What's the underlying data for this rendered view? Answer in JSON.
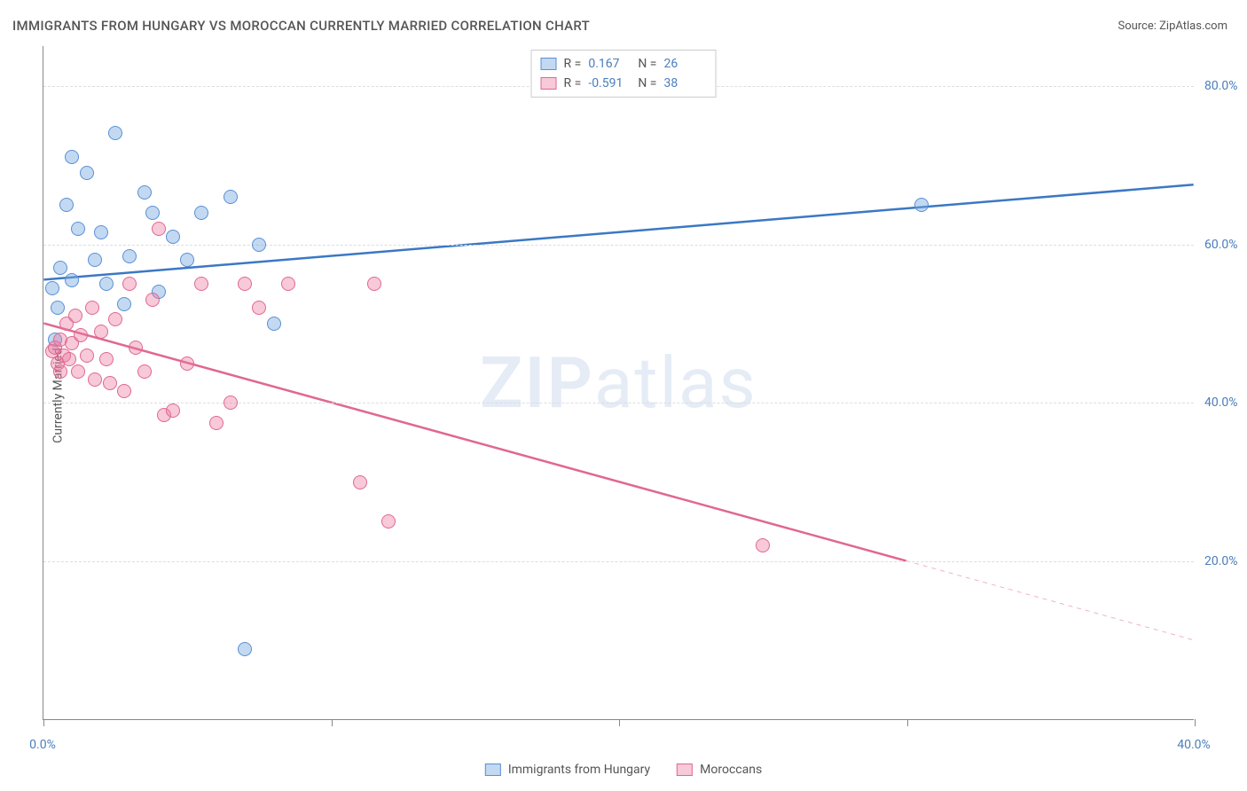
{
  "title": "IMMIGRANTS FROM HUNGARY VS MOROCCAN CURRENTLY MARRIED CORRELATION CHART",
  "source": "Source: ZipAtlas.com",
  "watermark": {
    "zip": "ZIP",
    "atlas": "atlas"
  },
  "y_axis_title": "Currently Married",
  "chart": {
    "type": "scatter",
    "background_color": "#ffffff",
    "grid_color": "#dddddd",
    "xlim": [
      0,
      40
    ],
    "ylim": [
      0,
      85
    ],
    "x_ticks": [
      0,
      10,
      20,
      30,
      40
    ],
    "x_tick_labels": [
      "0.0%",
      "",
      "",
      "",
      "40.0%"
    ],
    "y_ticks": [
      20,
      40,
      60,
      80
    ],
    "y_tick_labels": [
      "20.0%",
      "40.0%",
      "60.0%",
      "80.0%"
    ],
    "marker_radius": 8,
    "series": [
      {
        "name": "Immigrants from Hungary",
        "fill_color": "rgba(120,170,225,0.45)",
        "stroke_color": "#5a8fd6",
        "line_color": "#3b78c4",
        "line_width": 2.5,
        "R": "0.167",
        "N": "26",
        "regression": {
          "x1": 0,
          "y1": 55.5,
          "x2": 40,
          "y2": 67.5
        },
        "points": [
          [
            0.3,
            54.5
          ],
          [
            0.5,
            52.0
          ],
          [
            0.6,
            57.0
          ],
          [
            0.8,
            65.0
          ],
          [
            1.0,
            55.5
          ],
          [
            1.2,
            62.0
          ],
          [
            1.5,
            69.0
          ],
          [
            1.8,
            58.0
          ],
          [
            2.0,
            61.5
          ],
          [
            2.2,
            55.0
          ],
          [
            2.5,
            74.0
          ],
          [
            2.8,
            52.5
          ],
          [
            3.0,
            58.5
          ],
          [
            3.5,
            66.5
          ],
          [
            3.8,
            64.0
          ],
          [
            4.0,
            54.0
          ],
          [
            4.5,
            61.0
          ],
          [
            5.0,
            58.0
          ],
          [
            5.5,
            64.0
          ],
          [
            6.5,
            66.0
          ],
          [
            7.0,
            9.0
          ],
          [
            7.5,
            60.0
          ],
          [
            8.0,
            50.0
          ],
          [
            30.5,
            65.0
          ],
          [
            1.0,
            71.0
          ],
          [
            0.4,
            48.0
          ]
        ]
      },
      {
        "name": "Moroccans",
        "fill_color": "rgba(235,120,160,0.40)",
        "stroke_color": "#e06890",
        "line_color": "#e06890",
        "line_width": 2.5,
        "R": "-0.591",
        "N": "38",
        "regression": {
          "x1": 0,
          "y1": 50.0,
          "x2": 30,
          "y2": 20.0
        },
        "regression_dash": {
          "x1": 30,
          "y1": 20.0,
          "x2": 40,
          "y2": 10.0
        },
        "points": [
          [
            0.3,
            46.5
          ],
          [
            0.4,
            47.0
          ],
          [
            0.5,
            45.0
          ],
          [
            0.6,
            48.0
          ],
          [
            0.7,
            46.0
          ],
          [
            0.8,
            50.0
          ],
          [
            0.9,
            45.5
          ],
          [
            1.0,
            47.5
          ],
          [
            1.2,
            44.0
          ],
          [
            1.3,
            48.5
          ],
          [
            1.5,
            46.0
          ],
          [
            1.7,
            52.0
          ],
          [
            1.8,
            43.0
          ],
          [
            2.0,
            49.0
          ],
          [
            2.2,
            45.5
          ],
          [
            2.5,
            50.5
          ],
          [
            2.8,
            41.5
          ],
          [
            3.0,
            55.0
          ],
          [
            3.2,
            47.0
          ],
          [
            3.5,
            44.0
          ],
          [
            3.8,
            53.0
          ],
          [
            4.0,
            62.0
          ],
          [
            4.2,
            38.5
          ],
          [
            4.5,
            39.0
          ],
          [
            5.0,
            45.0
          ],
          [
            5.5,
            55.0
          ],
          [
            6.0,
            37.5
          ],
          [
            6.5,
            40.0
          ],
          [
            7.0,
            55.0
          ],
          [
            7.5,
            52.0
          ],
          [
            8.5,
            55.0
          ],
          [
            11.0,
            30.0
          ],
          [
            11.5,
            55.0
          ],
          [
            12.0,
            25.0
          ],
          [
            25.0,
            22.0
          ],
          [
            1.1,
            51.0
          ],
          [
            0.6,
            44.0
          ],
          [
            2.3,
            42.5
          ]
        ]
      }
    ]
  },
  "legend_top": {
    "rows": [
      {
        "swatch_fill": "rgba(120,170,225,0.45)",
        "swatch_stroke": "#5a8fd6",
        "r_label": "R =",
        "r_value": "0.167",
        "n_label": "N =",
        "n_value": "26"
      },
      {
        "swatch_fill": "rgba(235,120,160,0.40)",
        "swatch_stroke": "#e06890",
        "r_label": "R =",
        "r_value": "-0.591",
        "n_label": "N =",
        "n_value": "38"
      }
    ]
  },
  "legend_bottom": {
    "items": [
      {
        "swatch_fill": "rgba(120,170,225,0.45)",
        "swatch_stroke": "#5a8fd6",
        "label": "Immigrants from Hungary"
      },
      {
        "swatch_fill": "rgba(235,120,160,0.40)",
        "swatch_stroke": "#e06890",
        "label": "Moroccans"
      }
    ]
  }
}
